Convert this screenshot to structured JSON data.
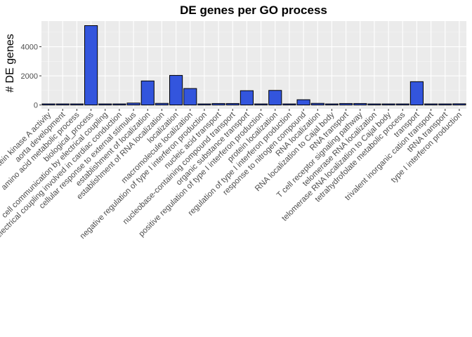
{
  "chart_data": {
    "type": "bar",
    "title": "DE genes per GO process",
    "xlabel": "",
    "ylabel": "# DE genes",
    "ylim": [
      0,
      5700
    ],
    "yticks": [
      0,
      2000,
      4000
    ],
    "grid": true,
    "bar_color": "#3355dd",
    "panel_color": "#ebebeb",
    "categories": [
      "activation of protein kinase A activity",
      "aorta development",
      "amino acid metabolic process",
      "biological_process",
      "cell communication by electrical coupling",
      "cell communication by electrical coupling involved in cardiac conduction",
      "cellular response to external stimulus",
      "establishment of localization",
      "establishment of RNA localization",
      "localization",
      "macromolecule localization",
      "negative regulation of type I interferon production",
      "nucleic acid transport",
      "nucleobase-containing compound transport",
      "organic substance transport",
      "positive regulation of type I interferon production",
      "protein localization",
      "regulation of type I interferon production",
      "response to nitrogen compound",
      "RNA localization",
      "RNA localization to Cajal body",
      "RNA transport",
      "T cell receptor signaling pathway",
      "telomerase RNA localization",
      "telomerase RNA localization to Cajal body",
      "tetrahydrofolate metabolic process",
      "transport",
      "trivalent inorganic cation transport",
      "tRNA transport",
      "type I interferon production"
    ],
    "values": [
      20,
      30,
      60,
      5450,
      15,
      15,
      130,
      1650,
      110,
      2030,
      1130,
      25,
      100,
      100,
      980,
      40,
      1000,
      70,
      360,
      110,
      25,
      100,
      100,
      25,
      25,
      25,
      1600,
      30,
      30,
      80
    ]
  }
}
